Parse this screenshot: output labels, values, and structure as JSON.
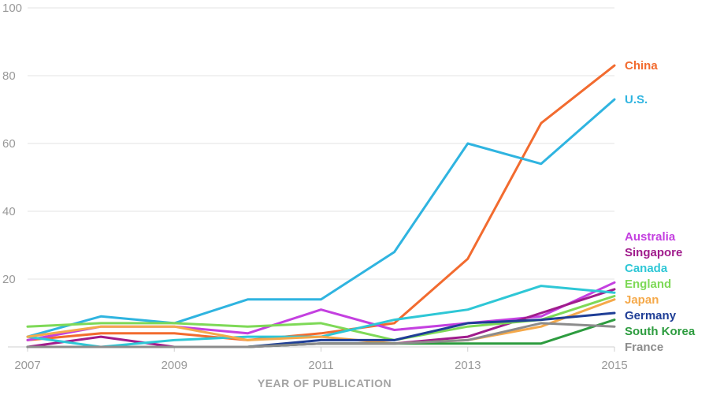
{
  "chart_data": {
    "type": "line",
    "xlabel": "YEAR OF PUBLICATION",
    "ylabel": "",
    "xlim": [
      2007,
      2015
    ],
    "ylim": [
      0,
      100
    ],
    "x_ticks": [
      2007,
      2009,
      2011,
      2013,
      2015
    ],
    "y_ticks": [
      20,
      40,
      60,
      80,
      100
    ],
    "grid": true,
    "legend": "labels at line ends (right)",
    "x": [
      2007,
      2008,
      2009,
      2010,
      2011,
      2012,
      2013,
      2014,
      2015
    ],
    "series": [
      {
        "name": "China",
        "color": "#f26b2f",
        "values": [
          2,
          4,
          4,
          2,
          4,
          7,
          26,
          66,
          83
        ]
      },
      {
        "name": "U.S.",
        "color": "#2fb4e0",
        "values": [
          3,
          9,
          7,
          14,
          14,
          28,
          60,
          54,
          73
        ]
      },
      {
        "name": "Australia",
        "color": "#c440e0",
        "values": [
          2,
          6,
          6,
          4,
          11,
          5,
          7,
          9,
          19
        ]
      },
      {
        "name": "Singapore",
        "color": "#a01c8c",
        "values": [
          0,
          3,
          0,
          0,
          1,
          1,
          3,
          10,
          17
        ]
      },
      {
        "name": "England",
        "color": "#7ed957",
        "values": [
          6,
          7,
          7,
          6,
          7,
          2,
          6,
          8,
          15
        ]
      },
      {
        "name": "Canada",
        "color": "#2ec7d6",
        "values": [
          3,
          0,
          2,
          3,
          3,
          8,
          11,
          18,
          16
        ]
      },
      {
        "name": "Japan",
        "color": "#f5a94a",
        "values": [
          3,
          6,
          6,
          2,
          3,
          1,
          2,
          6,
          14
        ]
      },
      {
        "name": "Germany",
        "color": "#1f3e96",
        "values": [
          0,
          0,
          0,
          0,
          2,
          2,
          7,
          8,
          10
        ]
      },
      {
        "name": "South Korea",
        "color": "#2d9c3f",
        "values": [
          0,
          0,
          0,
          0,
          1,
          1,
          1,
          1,
          8
        ]
      },
      {
        "name": "France",
        "color": "#8c8c8c",
        "values": [
          0,
          0,
          0,
          0,
          1,
          1,
          2,
          7,
          6
        ]
      }
    ]
  }
}
